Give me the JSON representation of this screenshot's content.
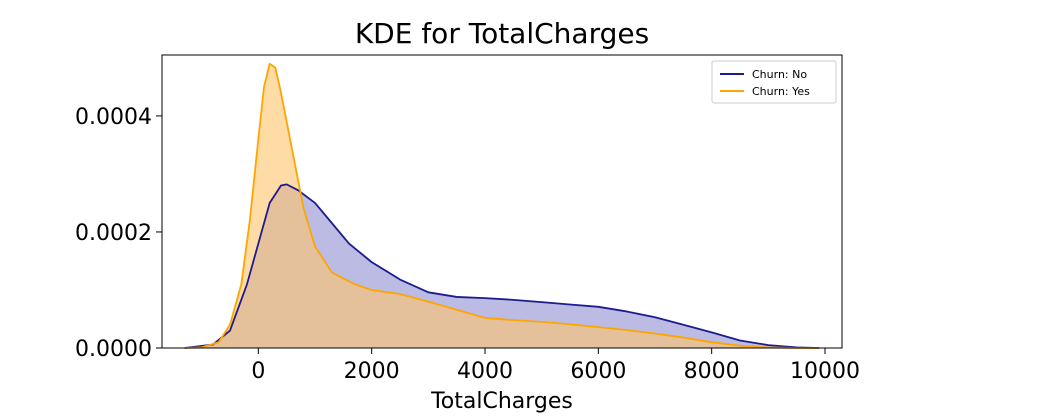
{
  "chart_data": {
    "type": "area",
    "title": "KDE for TotalCharges",
    "xlabel": "TotalCharges",
    "ylabel": "",
    "xlim": [
      -1700,
      10300
    ],
    "ylim": [
      0,
      0.000505
    ],
    "grid": false,
    "legend_position": "top-right",
    "x_ticks": [
      0,
      2000,
      4000,
      6000,
      8000,
      10000
    ],
    "x_tick_labels": [
      "0",
      "2000",
      "4000",
      "6000",
      "8000",
      "10000"
    ],
    "y_ticks": [
      0,
      0.0002,
      0.0004
    ],
    "y_tick_labels": [
      "0.0000",
      "0.0002",
      "0.0004"
    ],
    "series": [
      {
        "name": "Churn: No",
        "color": "#1c1c8c",
        "fill_color": "#8e8ed0",
        "x": [
          -1300,
          -800,
          -500,
          -200,
          0,
          200,
          400,
          500,
          700,
          1000,
          1300,
          1600,
          2000,
          2500,
          3000,
          3500,
          4000,
          4500,
          5000,
          5500,
          6000,
          6500,
          7000,
          7500,
          8000,
          8500,
          9000,
          9500,
          9900
        ],
        "y": [
          0.0,
          6e-06,
          3e-05,
          0.00011,
          0.00018,
          0.00025,
          0.00028,
          0.000282,
          0.000272,
          0.00025,
          0.000215,
          0.00018,
          0.000148,
          0.000118,
          9.6e-05,
          8.8e-05,
          8.6e-05,
          8.3e-05,
          7.9e-05,
          7.5e-05,
          7.1e-05,
          6.3e-05,
          5.3e-05,
          4e-05,
          2.7e-05,
          1.3e-05,
          5e-06,
          1e-06,
          0.0
        ]
      },
      {
        "name": "Churn: Yes",
        "color": "#ffa500",
        "fill_color": "#ffc36a",
        "x": [
          -1300,
          -1000,
          -700,
          -500,
          -300,
          -150,
          0,
          100,
          200,
          300,
          400,
          600,
          800,
          1000,
          1300,
          1700,
          2000,
          2500,
          3000,
          3500,
          4000,
          4500,
          5000,
          5500,
          6000,
          6500,
          7000,
          7500,
          8000,
          8500,
          9000,
          9500,
          9900
        ],
        "y": [
          0.0,
          1e-06,
          1e-05,
          4e-05,
          0.00011,
          0.00022,
          0.00036,
          0.00045,
          0.00049,
          0.000483,
          0.00044,
          0.00034,
          0.00024,
          0.000175,
          0.00013,
          0.00011,
          0.0001,
          9.3e-05,
          8e-05,
          6.6e-05,
          5.2e-05,
          4.8e-05,
          4.5e-05,
          4.1e-05,
          3.6e-05,
          3.1e-05,
          2.5e-05,
          1.8e-05,
          1e-05,
          4e-06,
          1e-06,
          0.0,
          0.0
        ]
      }
    ]
  }
}
